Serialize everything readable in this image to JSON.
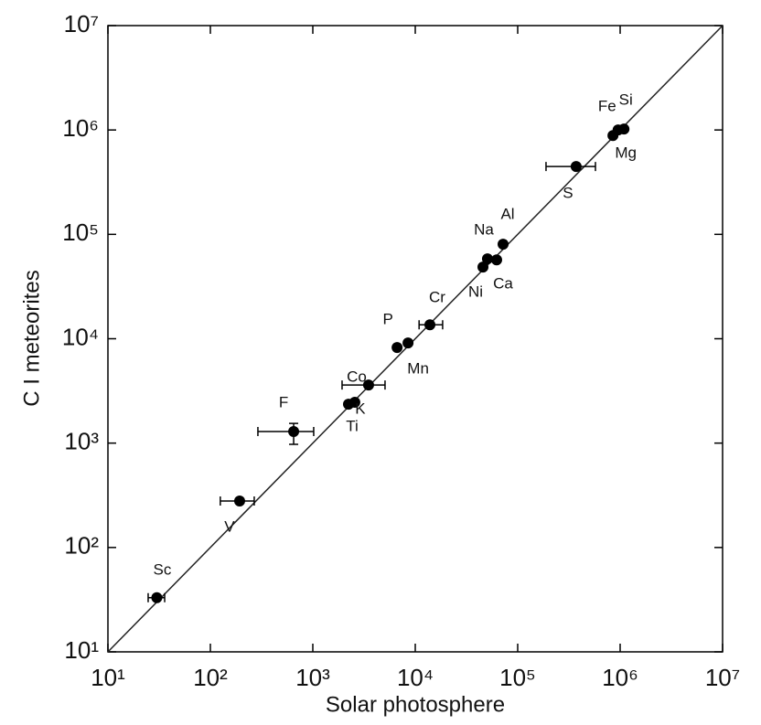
{
  "chart_data": {
    "type": "scatter",
    "xlabel": "Solar photosphere",
    "ylabel": "C I meteorites",
    "log_x": true,
    "log_y": true,
    "color": "#000000",
    "xlim": [
      10,
      10000000
    ],
    "ylim": [
      10,
      10000000
    ],
    "xticks": [
      {
        "value": 10,
        "label": "10¹"
      },
      {
        "value": 100,
        "label": "10²"
      },
      {
        "value": 1000,
        "label": "10³"
      },
      {
        "value": 10000,
        "label": "10⁴"
      },
      {
        "value": 100000,
        "label": "10⁵"
      },
      {
        "value": 1000000,
        "label": "10⁶"
      },
      {
        "value": 10000000,
        "label": "10⁷"
      }
    ],
    "yticks": [
      {
        "value": 10,
        "label": "10¹"
      },
      {
        "value": 100,
        "label": "10²"
      },
      {
        "value": 1000,
        "label": "10³"
      },
      {
        "value": 10000,
        "label": "10⁴"
      },
      {
        "value": 100000,
        "label": "10⁵"
      },
      {
        "value": 1000000,
        "label": "10⁶"
      },
      {
        "value": 10000000,
        "label": "10⁷"
      }
    ],
    "labels": [
      "Sc",
      "V",
      "F",
      "Ti",
      "K",
      "Co",
      "P",
      "Mn",
      "Cr",
      "Ni",
      "Na",
      "Ca",
      "Al",
      "S",
      "Mg",
      "Fe",
      "Si"
    ],
    "x": [
      30,
      193,
      650,
      2230,
      2570,
      3500,
      6650,
      8500,
      13900,
      45800,
      50700,
      62300,
      72000,
      372000,
      851000,
      955000,
      1090000
    ],
    "y": [
      33,
      279,
      1290,
      2360,
      2460,
      3600,
      8240,
      9100,
      13600,
      48600,
      58200,
      57000,
      80400,
      447000,
      885000,
      1000000,
      1020000
    ],
    "xerr_low": [
      24.7,
      125,
      291,
      null,
      null,
      1930,
      null,
      null,
      10900,
      null,
      null,
      null,
      null,
      189000,
      null,
      null,
      null
    ],
    "xerr_high": [
      35.8,
      268,
      1020,
      null,
      null,
      5070,
      null,
      null,
      18500,
      null,
      null,
      null,
      null,
      574000,
      null,
      null,
      null
    ],
    "yerr_low": [
      null,
      null,
      973,
      null,
      null,
      null,
      null,
      null,
      null,
      null,
      null,
      null,
      null,
      null,
      null,
      null,
      null
    ],
    "yerr_high": [
      null,
      null,
      1545,
      null,
      null,
      null,
      null,
      null,
      null,
      null,
      null,
      null,
      null,
      null,
      null,
      null,
      null
    ],
    "fit_x": [
      10,
      10000000
    ],
    "fit_y": [
      10,
      10000000
    ]
  }
}
